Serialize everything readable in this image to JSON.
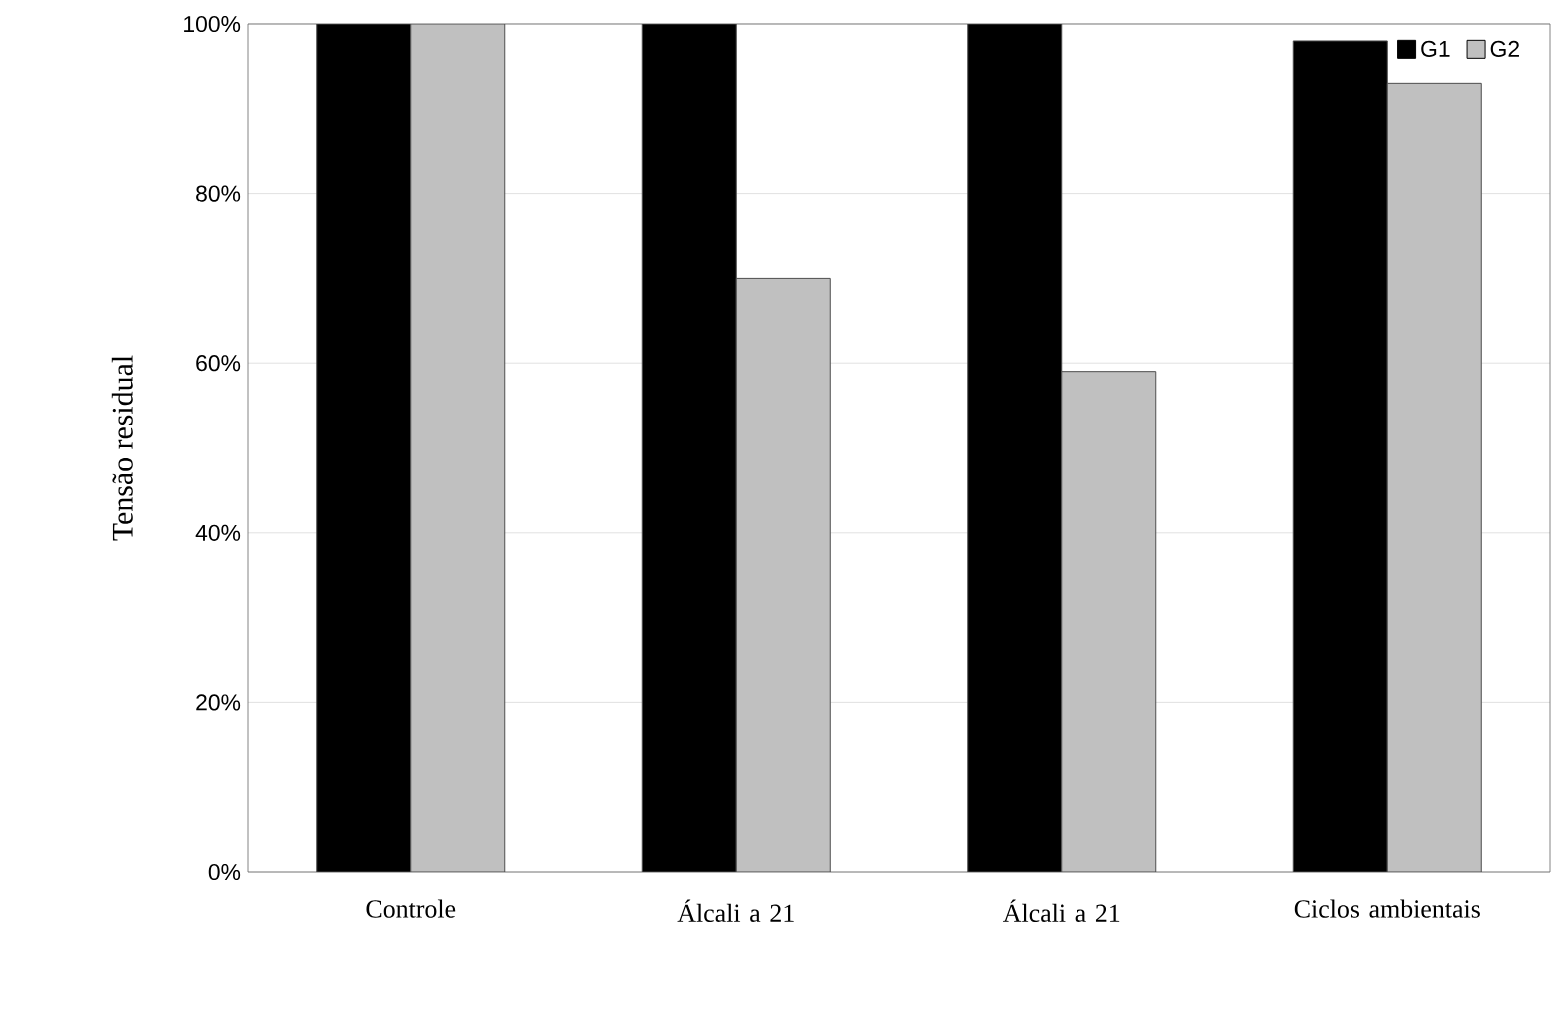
{
  "chart_data": {
    "type": "bar",
    "ylabel": "Tensão residual",
    "categories": [
      "Controle",
      "Álcali a 21",
      "Álcali a 21",
      "Ciclos ambientais"
    ],
    "series": [
      {
        "name": "G1",
        "color": "#000000",
        "values": [
          100,
          100,
          100,
          98
        ]
      },
      {
        "name": "G2",
        "color": "#c0c0c0",
        "values": [
          100,
          70,
          59,
          93
        ]
      }
    ],
    "ylim": [
      0,
      100
    ],
    "yticks": [
      {
        "value": 0,
        "label": "0%"
      },
      {
        "value": 20,
        "label": "20%"
      },
      {
        "value": 40,
        "label": "40%"
      },
      {
        "value": 60,
        "label": "60%"
      },
      {
        "value": 80,
        "label": "80%"
      },
      {
        "value": 100,
        "label": "100%"
      }
    ],
    "grid": "y",
    "legend": "top right"
  }
}
